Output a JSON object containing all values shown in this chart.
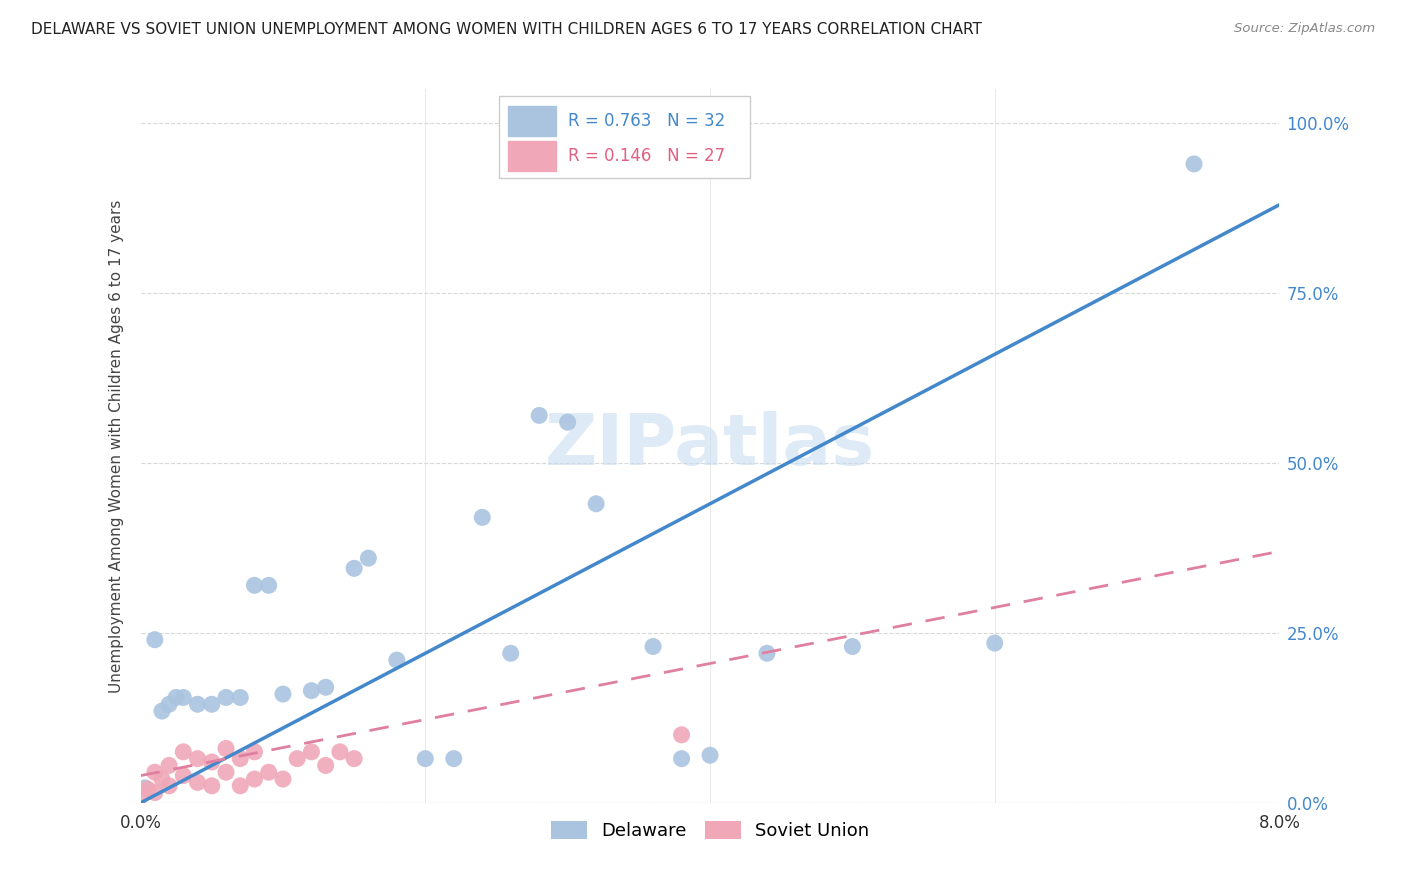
{
  "title": "DELAWARE VS SOVIET UNION UNEMPLOYMENT AMONG WOMEN WITH CHILDREN AGES 6 TO 17 YEARS CORRELATION CHART",
  "source": "Source: ZipAtlas.com",
  "ylabel": "Unemployment Among Women with Children Ages 6 to 17 years",
  "x_min": 0.0,
  "x_max": 0.08,
  "y_min": 0.0,
  "y_max": 1.05,
  "y_tick_vals": [
    0.0,
    0.25,
    0.5,
    0.75,
    1.0
  ],
  "y_tick_labels": [
    "0.0%",
    "25.0%",
    "50.0%",
    "75.0%",
    "100.0%"
  ],
  "delaware_R": 0.763,
  "delaware_N": 32,
  "soviet_R": 0.146,
  "soviet_N": 27,
  "delaware_color": "#aac4e0",
  "soviet_color": "#f0a8b8",
  "delaware_line_color": "#4488cc",
  "soviet_line_color": "#e080a0",
  "background_color": "#ffffff",
  "grid_color": "#d8d8d8",
  "watermark": "ZIPatlas",
  "delaware_x": [
    0.0003,
    0.001,
    0.0015,
    0.002,
    0.0025,
    0.003,
    0.004,
    0.005,
    0.006,
    0.007,
    0.008,
    0.009,
    0.01,
    0.012,
    0.013,
    0.015,
    0.016,
    0.018,
    0.02,
    0.022,
    0.024,
    0.026,
    0.028,
    0.03,
    0.032,
    0.036,
    0.038,
    0.04,
    0.044,
    0.05,
    0.06,
    0.074
  ],
  "delaware_y": [
    0.022,
    0.24,
    0.135,
    0.145,
    0.155,
    0.155,
    0.145,
    0.145,
    0.155,
    0.155,
    0.32,
    0.32,
    0.16,
    0.165,
    0.17,
    0.345,
    0.36,
    0.21,
    0.065,
    0.065,
    0.42,
    0.22,
    0.57,
    0.56,
    0.44,
    0.23,
    0.065,
    0.07,
    0.22,
    0.23,
    0.235,
    0.94
  ],
  "soviet_x": [
    0.0,
    0.0005,
    0.001,
    0.001,
    0.0015,
    0.002,
    0.002,
    0.003,
    0.003,
    0.004,
    0.004,
    0.005,
    0.005,
    0.006,
    0.006,
    0.007,
    0.007,
    0.008,
    0.008,
    0.009,
    0.01,
    0.011,
    0.012,
    0.013,
    0.014,
    0.015,
    0.038
  ],
  "soviet_y": [
    0.01,
    0.02,
    0.015,
    0.045,
    0.035,
    0.025,
    0.055,
    0.04,
    0.075,
    0.03,
    0.065,
    0.025,
    0.06,
    0.045,
    0.08,
    0.025,
    0.065,
    0.035,
    0.075,
    0.045,
    0.035,
    0.065,
    0.075,
    0.055,
    0.075,
    0.065,
    0.1
  ],
  "de_line_x0": 0.0,
  "de_line_y0": 0.0,
  "de_line_x1": 0.08,
  "de_line_y1": 0.88,
  "su_line_x0": 0.0,
  "su_line_y0": 0.04,
  "su_line_x1": 0.08,
  "su_line_y1": 0.37
}
